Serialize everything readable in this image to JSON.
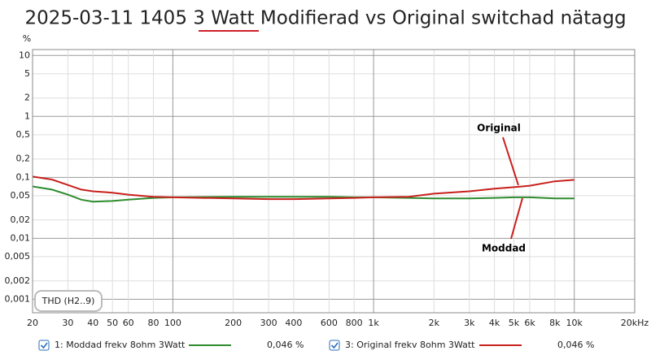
{
  "chart_data": {
    "type": "line",
    "title": "2025-03-11 1405 3 Watt Modifierad vs Original switchad nätagg",
    "y_unit": "%",
    "measurement_label": "THD (H2..9)",
    "log_x": true,
    "log_y": true,
    "grid": true,
    "xlim": [
      20,
      20000
    ],
    "ylim": [
      0.0006,
      12.5
    ],
    "xticks": [
      20,
      30,
      40,
      50,
      60,
      80,
      100,
      200,
      300,
      400,
      600,
      800,
      {
        "value": 1000,
        "label": "1k"
      },
      {
        "value": 2000,
        "label": "2k"
      },
      {
        "value": 3000,
        "label": "3k"
      },
      {
        "value": 4000,
        "label": "4k"
      },
      {
        "value": 5000,
        "label": "5k"
      },
      {
        "value": 6000,
        "label": "6k"
      },
      {
        "value": 8000,
        "label": "8k"
      },
      {
        "value": 10000,
        "label": "10k"
      },
      {
        "value": 20000,
        "label": "20kHz"
      }
    ],
    "yticks": [
      10,
      5,
      2,
      1,
      {
        "value": 0.5,
        "label": "0,5"
      },
      {
        "value": 0.2,
        "label": "0,2"
      },
      {
        "value": 0.1,
        "label": "0,1"
      },
      {
        "value": 0.05,
        "label": "0,05"
      },
      {
        "value": 0.02,
        "label": "0,02"
      },
      {
        "value": 0.01,
        "label": "0,01"
      },
      {
        "value": 0.005,
        "label": "0,005"
      },
      {
        "value": 0.002,
        "label": "0,002"
      },
      {
        "value": 0.001,
        "label": "0,001"
      }
    ],
    "x": [
      20,
      25,
      30,
      35,
      40,
      50,
      60,
      80,
      100,
      200,
      300,
      400,
      600,
      800,
      1000,
      1500,
      2000,
      3000,
      4000,
      5000,
      6000,
      8000,
      10000
    ],
    "series": [
      {
        "name": "1: Moddad frekv 8ohm 3Watt",
        "color": "#2e8b2e",
        "readout": "0,046 %",
        "values": [
          0.071,
          0.063,
          0.052,
          0.043,
          0.04,
          0.041,
          0.043,
          0.046,
          0.047,
          0.048,
          0.048,
          0.048,
          0.048,
          0.047,
          0.047,
          0.046,
          0.045,
          0.045,
          0.046,
          0.047,
          0.047,
          0.045,
          0.045
        ]
      },
      {
        "name": "3: Original frekv 8ohm 3Watt",
        "color": "#c8201c",
        "readout": "0,046 %",
        "values": [
          0.103,
          0.092,
          0.075,
          0.063,
          0.059,
          0.056,
          0.052,
          0.048,
          0.047,
          0.045,
          0.044,
          0.044,
          0.045,
          0.046,
          0.047,
          0.048,
          0.054,
          0.059,
          0.065,
          0.069,
          0.073,
          0.086,
          0.091
        ]
      }
    ],
    "annotations": [
      "Original",
      "Moddad"
    ]
  }
}
